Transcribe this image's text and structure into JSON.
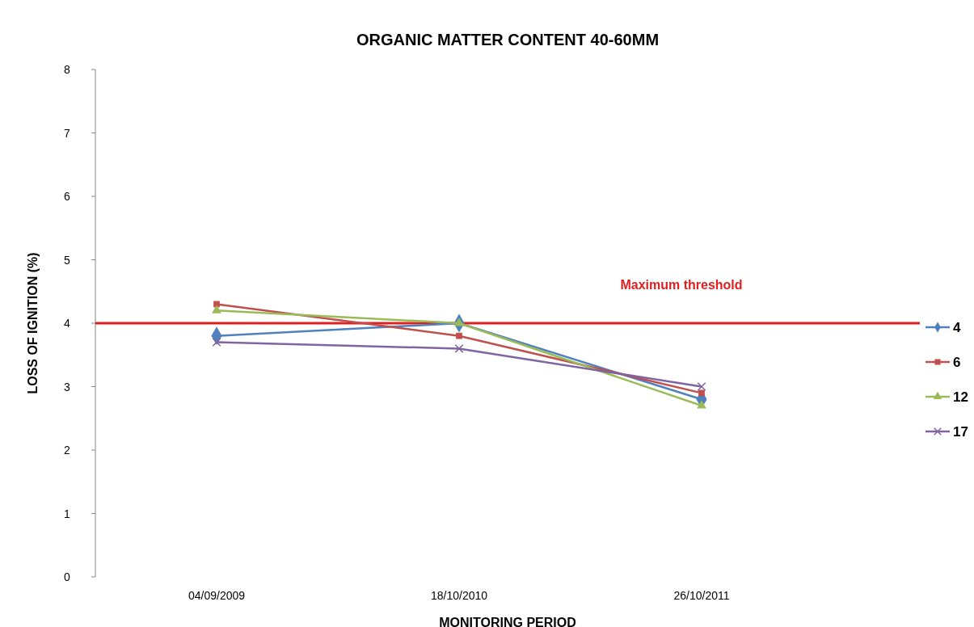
{
  "chart_data": {
    "type": "line",
    "title": "ORGANIC MATTER CONTENT 40-60MM",
    "xlabel": "MONITORING PERIOD",
    "ylabel": "LOSS OF IGNITION (%)",
    "categories": [
      "04/09/2009",
      "18/10/2010",
      "26/10/2011"
    ],
    "series": [
      {
        "name": "4",
        "color": "#4f81bd",
        "values": [
          3.8,
          4.0,
          2.8
        ],
        "marker": "diamond"
      },
      {
        "name": "6",
        "color": "#c0504d",
        "values": [
          4.3,
          3.8,
          2.9
        ],
        "marker": "square"
      },
      {
        "name": "12",
        "color": "#9bbb59",
        "values": [
          4.2,
          4.0,
          2.7
        ],
        "marker": "triangle"
      },
      {
        "name": "17",
        "color": "#8064a2",
        "values": [
          3.7,
          3.6,
          3.0
        ],
        "marker": "cross"
      }
    ],
    "ylim": [
      0,
      8
    ],
    "yticks": [
      0,
      1,
      2,
      3,
      4,
      5,
      6,
      7,
      8
    ],
    "grid": false,
    "legend": "right",
    "ref_lines": [
      {
        "axis": "y",
        "value": 4,
        "label": "Maximum threshold",
        "color": "#e02020"
      }
    ]
  }
}
